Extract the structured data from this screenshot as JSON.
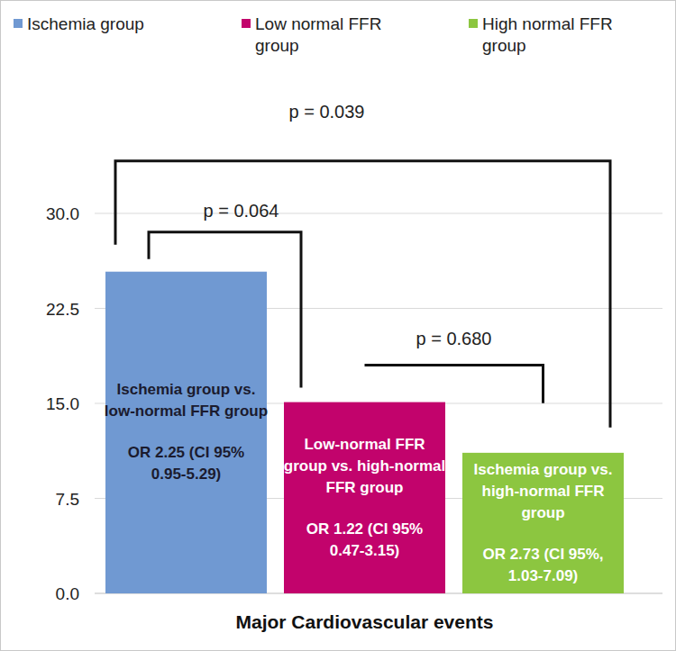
{
  "chart_data": {
    "type": "bar",
    "categories": [
      "Major Cardiovascular events"
    ],
    "series": [
      {
        "name": "Ischemia group",
        "color": "#7099d2",
        "values": [
          25.4
        ]
      },
      {
        "name": "Low normal FFR group",
        "color": "#c2036c",
        "values": [
          15.1
        ]
      },
      {
        "name": "High normal FFR group",
        "color": "#8cc640",
        "values": [
          11.1
        ]
      }
    ],
    "ylim": [
      0,
      30
    ],
    "yticks": [
      {
        "value": 0,
        "label": "0.0"
      },
      7.5,
      {
        "value": 15,
        "label": "15.0"
      },
      22.5,
      {
        "value": 30,
        "label": "30.0"
      }
    ],
    "grid": true,
    "legend": "top",
    "annotations": [
      {
        "text": "p = 0.039",
        "from": 0,
        "to": 2
      },
      {
        "text": "p = 0.064",
        "from": 0,
        "to": 1
      },
      {
        "text": "p = 0.680",
        "from": 1,
        "to": 2
      }
    ],
    "bar_notes": [
      {
        "lines": [
          "Ischemia group vs.",
          "low-normal FFR group"
        ],
        "or_lines": [
          "OR 2.25 (CI 95%",
          "0.95-5.29)"
        ]
      },
      {
        "lines": [
          "Low-normal FFR",
          "group vs. high-normal",
          "FFR group"
        ],
        "or_lines": [
          "OR 1.22 (CI 95%",
          "0.47-3.15)"
        ]
      },
      {
        "lines": [
          "Ischemia group vs.",
          "high-normal FFR",
          "group"
        ],
        "or_lines": [
          "OR 2.73 (CI 95%,",
          "1.03-7.09)"
        ]
      }
    ]
  }
}
